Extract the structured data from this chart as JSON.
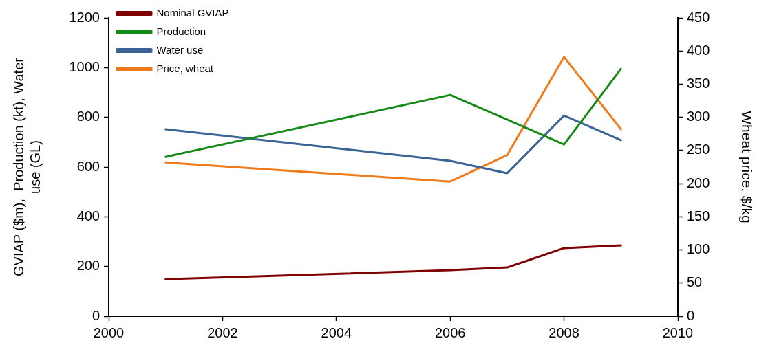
{
  "chart_data": {
    "type": "line",
    "x": [
      2001,
      2006,
      2007,
      2008,
      2009
    ],
    "series": [
      {
        "name": "Nominal GVIAP",
        "color": "#7f0000",
        "values": [
          149,
          185,
          196,
          274,
          285
        ]
      },
      {
        "name": "Production",
        "color": "#168a16",
        "values": [
          641,
          890,
          791,
          691,
          995
        ]
      },
      {
        "name": "Water use",
        "color": "#3a6496",
        "values": [
          752,
          625,
          575,
          807,
          708
        ]
      },
      {
        "name": "Price, wheat",
        "color": "#ef7a1a",
        "values": [
          232,
          203,
          243,
          391,
          282
        ],
        "axis": "y2"
      }
    ],
    "ylabel": "GVIAP ($m),  Production (kt), Water use (GL)",
    "y2label": "Wheat price, $/kg",
    "xlim": [
      2000,
      2010
    ],
    "xticks": [
      2000,
      2002,
      2004,
      2006,
      2008,
      2010
    ],
    "ylim": [
      0,
      1200
    ],
    "yticks": [
      0,
      200,
      400,
      600,
      800,
      1000,
      1200
    ],
    "y2lim": [
      0,
      450
    ],
    "y2ticks": [
      0,
      50,
      100,
      150,
      200,
      250,
      300,
      350,
      400,
      450
    ],
    "grid": false,
    "legend": "top left",
    "marker": "none",
    "line_style": "solid"
  }
}
